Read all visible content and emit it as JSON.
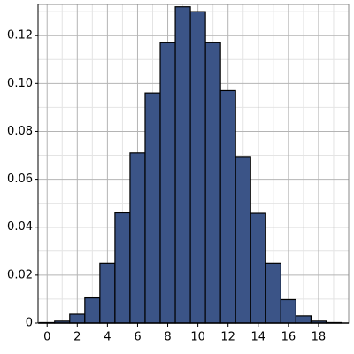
{
  "chart_data": {
    "type": "histogram",
    "bins": [
      -0.5,
      0.5,
      1.5,
      2.5,
      3.5,
      4.5,
      5.5,
      6.5,
      7.5,
      8.5,
      9.5,
      10.5,
      11.5,
      12.5,
      13.5,
      14.5,
      15.5,
      16.5,
      17.5,
      18.5,
      19.5
    ],
    "values": [
      0.0002,
      0.0008,
      0.0037,
      0.0105,
      0.025,
      0.046,
      0.071,
      0.096,
      0.117,
      0.132,
      0.13,
      0.117,
      0.097,
      0.0695,
      0.0458,
      0.025,
      0.0098,
      0.003,
      0.0008,
      0.0002
    ],
    "color": "#3b5487",
    "xlim": [
      -0.6,
      20
    ],
    "ylim": [
      0,
      0.133
    ],
    "xticks": [
      0,
      2,
      4,
      6,
      8,
      10,
      12,
      14,
      16,
      18
    ],
    "yticks": [
      0,
      0.02,
      0.04,
      0.06,
      0.08,
      {
        "value": 0.1,
        "label": "0.10"
      },
      0.12
    ],
    "xminorticks": [
      1,
      3,
      5,
      7,
      9,
      11,
      13,
      15,
      17,
      19
    ],
    "yminorticks": [
      0.01,
      0.03,
      0.05,
      0.07,
      0.09,
      0.11,
      0.13
    ],
    "grid": true
  }
}
